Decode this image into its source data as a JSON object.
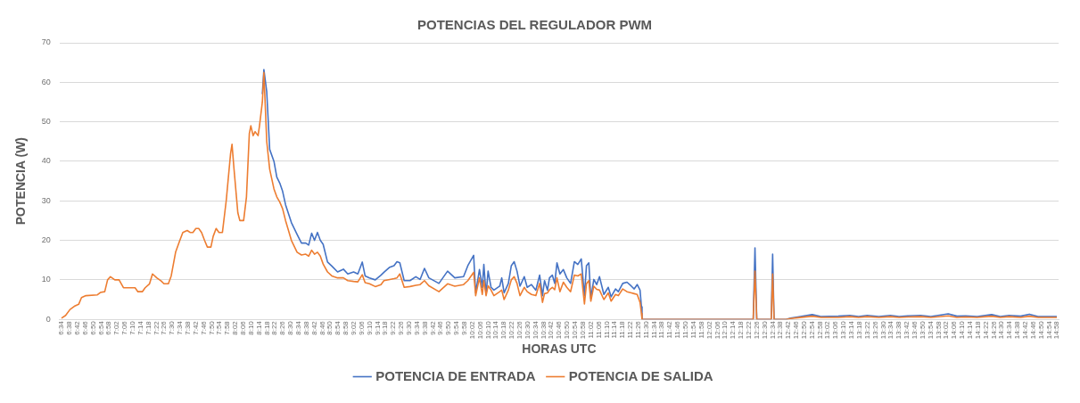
{
  "chart_data": {
    "type": "line",
    "title": "POTENCIAS DEL REGULADOR PWM",
    "xlabel": "HORAS UTC",
    "ylabel": "POTENCIA (W)",
    "x": [
      6.566,
      6.601,
      6.638,
      6.674,
      6.711,
      6.735,
      6.772,
      6.869,
      6.894,
      6.931,
      6.955,
      6.979,
      7.016,
      7.052,
      7.089,
      7.187,
      7.211,
      7.248,
      7.272,
      7.309,
      7.334,
      7.37,
      7.407,
      7.431,
      7.468,
      7.492,
      7.529,
      7.565,
      7.59,
      7.627,
      7.651,
      7.675,
      7.7,
      7.724,
      7.748,
      7.773,
      7.797,
      7.827,
      7.846,
      7.871,
      7.895,
      7.924,
      7.956,
      7.993,
      8.005,
      8.022,
      8.054,
      8.071,
      8.103,
      8.127,
      8.151,
      8.164,
      8.183,
      8.2,
      8.225,
      8.237,
      8.261,
      8.274,
      8.298,
      8.323,
      8.359,
      8.383,
      8.408,
      8.432,
      8.457,
      8.506,
      8.554,
      8.591,
      8.627,
      8.652,
      8.677,
      8.701,
      8.726,
      8.75,
      8.774,
      8.811,
      8.847,
      8.896,
      8.945,
      8.982,
      9.031,
      9.067,
      9.104,
      9.128,
      9.165,
      9.214,
      9.262,
      9.287,
      9.336,
      9.372,
      9.397,
      9.421,
      9.458,
      9.507,
      9.556,
      9.592,
      9.629,
      9.666,
      9.751,
      9.824,
      9.885,
      9.959,
      9.995,
      10.044,
      10.061,
      10.093,
      10.117,
      10.13,
      10.149,
      10.166,
      10.191,
      10.215,
      10.264,
      10.281,
      10.301,
      10.337,
      10.362,
      10.386,
      10.41,
      10.435,
      10.471,
      10.496,
      10.532,
      10.569,
      10.601,
      10.625,
      10.642,
      10.667,
      10.684,
      10.708,
      10.728,
      10.747,
      10.772,
      10.801,
      10.83,
      10.862,
      10.894,
      10.923,
      10.952,
      10.979,
      10.996,
      11.016,
      11.033,
      11.058,
      11.082,
      11.106,
      11.143,
      11.18,
      11.204,
      11.241,
      11.265,
      11.302,
      11.338,
      11.375,
      11.399,
      11.424,
      11.448,
      11.46,
      11.465,
      12.403,
      12.418,
      12.433,
      12.555,
      12.567,
      12.579,
      12.681,
      12.718,
      12.779,
      12.901,
      12.974,
      13.121,
      13.219,
      13.292,
      13.365,
      13.463,
      13.561,
      13.634,
      13.707,
      13.817,
      13.902,
      14.049,
      14.122,
      14.195,
      14.293,
      14.415,
      14.488,
      14.562,
      14.659,
      14.733,
      14.806,
      14.879,
      14.965
    ],
    "series": [
      {
        "name": "POTENCIA DE ENTRADA",
        "color": "#4472c4",
        "values": [
          null,
          null,
          null,
          null,
          null,
          null,
          null,
          null,
          null,
          null,
          null,
          null,
          null,
          null,
          null,
          null,
          null,
          null,
          null,
          null,
          null,
          null,
          null,
          null,
          null,
          null,
          null,
          null,
          null,
          null,
          null,
          null,
          null,
          null,
          null,
          null,
          null,
          null,
          null,
          null,
          null,
          null,
          null,
          null,
          null,
          null,
          null,
          null,
          null,
          null,
          null,
          null,
          null,
          null,
          null,
          null,
          57,
          63.2,
          57.6,
          43,
          40,
          36,
          34.5,
          32.4,
          29,
          24.5,
          21.5,
          19.3,
          19.3,
          18.8,
          21.8,
          20,
          22,
          20,
          19,
          14.5,
          13.5,
          12,
          12.7,
          11.5,
          12,
          11.5,
          14.5,
          11,
          10.5,
          10,
          11.2,
          11.9,
          13.2,
          13.6,
          14.6,
          14.3,
          9.8,
          9.8,
          10.8,
          10.1,
          12.9,
          10.5,
          9.1,
          12.2,
          10.5,
          10.8,
          13.6,
          16.2,
          6.7,
          12.6,
          8.1,
          13.9,
          6.3,
          12.2,
          8.1,
          7.4,
          8.4,
          10.5,
          6.7,
          9.1,
          13.6,
          14.6,
          12.2,
          8.4,
          10.8,
          8.1,
          8.8,
          7.4,
          11.2,
          6,
          9.8,
          7.4,
          10.5,
          11.2,
          9.1,
          14.3,
          11.5,
          12.6,
          10.5,
          9.1,
          14.6,
          13.9,
          15.3,
          6,
          13.6,
          14.3,
          5.3,
          10.1,
          8.8,
          10.8,
          6.3,
          8.1,
          5.7,
          7.7,
          7,
          9.1,
          9.4,
          8.4,
          7.7,
          8.8,
          7.4,
          3.2,
          0,
          0,
          18.1,
          0,
          0,
          16.5,
          0,
          0,
          0.3,
          0.6,
          1.2,
          0.7,
          0.8,
          1,
          0.7,
          1,
          0.7,
          1,
          0.7,
          0.9,
          1,
          0.7,
          1.4,
          0.8,
          0.9,
          0.7,
          1.2,
          0.7,
          1,
          0.8,
          1.3,
          0.7,
          0.7,
          0.7
        ]
      },
      {
        "name": "POTENCIA DE SALIDA",
        "color": "#ed7d31",
        "values": [
          0.3,
          1,
          2.5,
          3.3,
          3.8,
          5.5,
          6,
          6.2,
          6.8,
          7,
          10,
          10.8,
          10,
          10,
          8,
          8,
          7,
          7,
          8,
          9,
          11.5,
          10.5,
          9.7,
          9,
          9,
          11,
          17,
          20,
          22,
          22.5,
          22,
          22,
          23,
          23,
          22,
          20,
          18.3,
          18.3,
          21,
          23,
          22,
          22,
          30,
          42,
          44.3,
          38,
          27,
          25,
          25,
          31,
          47,
          49,
          46.5,
          47.5,
          46.5,
          49,
          55,
          62.5,
          45,
          38,
          33,
          31,
          29.7,
          28,
          25,
          20,
          17,
          16.3,
          16.5,
          16,
          17.5,
          16.5,
          17,
          16,
          14,
          12,
          11,
          10.5,
          10.5,
          9.8,
          9.6,
          9.5,
          11.3,
          9.3,
          9,
          8.3,
          8.8,
          9.8,
          10.1,
          10.3,
          10.5,
          11.5,
          8.1,
          8.3,
          8.6,
          8.8,
          9.8,
          8.5,
          7,
          9,
          8.4,
          8.8,
          9.8,
          11.9,
          6,
          10.5,
          6.3,
          9.8,
          6,
          8.5,
          7.4,
          6,
          7,
          7.4,
          5,
          7.4,
          10,
          10.8,
          9.1,
          6,
          8.1,
          7,
          6.3,
          6,
          9.1,
          4.3,
          6.5,
          6.7,
          7.5,
          8.1,
          7.5,
          10.5,
          7,
          9.4,
          8.1,
          7,
          11.2,
          11,
          11.5,
          3.9,
          9,
          9.8,
          4.6,
          8.4,
          7.6,
          7.4,
          5,
          6.7,
          4.6,
          6.3,
          6,
          7.7,
          7,
          6.7,
          6.5,
          6.3,
          4.3,
          1.5,
          0,
          0,
          12.2,
          0,
          0,
          11.5,
          0,
          0,
          0.2,
          0.4,
          0.8,
          0.5,
          0.5,
          0.7,
          0.5,
          0.7,
          0.5,
          0.7,
          0.5,
          0.6,
          0.7,
          0.5,
          0.9,
          0.5,
          0.6,
          0.5,
          0.8,
          0.5,
          0.7,
          0.5,
          0.8,
          0.5,
          0.5,
          0.5
        ]
      }
    ],
    "xlim": [
      6.55,
      14.98
    ],
    "xticks": [
      {
        "value": 6.567,
        "label": "6:34"
      },
      {
        "value": 6.633,
        "label": "6:38"
      },
      {
        "value": 6.7,
        "label": "6:42"
      },
      {
        "value": 6.767,
        "label": "6:46"
      },
      {
        "value": 6.833,
        "label": "6:50"
      },
      {
        "value": 6.9,
        "label": "6:54"
      },
      {
        "value": 6.967,
        "label": "6:58"
      },
      {
        "value": 7.033,
        "label": "7:02"
      },
      {
        "value": 7.1,
        "label": "7:06"
      },
      {
        "value": 7.167,
        "label": "7:10"
      },
      {
        "value": 7.233,
        "label": "7:14"
      },
      {
        "value": 7.3,
        "label": "7:18"
      },
      {
        "value": 7.367,
        "label": "7:22"
      },
      {
        "value": 7.433,
        "label": "7:26"
      },
      {
        "value": 7.5,
        "label": "7:30"
      },
      {
        "value": 7.567,
        "label": "7:34"
      },
      {
        "value": 7.633,
        "label": "7:38"
      },
      {
        "value": 7.7,
        "label": "7:42"
      },
      {
        "value": 7.767,
        "label": "7:46"
      },
      {
        "value": 7.833,
        "label": "7:50"
      },
      {
        "value": 7.9,
        "label": "7:54"
      },
      {
        "value": 7.967,
        "label": "7:58"
      },
      {
        "value": 8.033,
        "label": "8:02"
      },
      {
        "value": 8.1,
        "label": "8:06"
      },
      {
        "value": 8.167,
        "label": "8:10"
      },
      {
        "value": 8.233,
        "label": "8:14"
      },
      {
        "value": 8.3,
        "label": "8:18"
      },
      {
        "value": 8.367,
        "label": "8:22"
      },
      {
        "value": 8.433,
        "label": "8:26"
      },
      {
        "value": 8.5,
        "label": "8:30"
      },
      {
        "value": 8.567,
        "label": "8:34"
      },
      {
        "value": 8.633,
        "label": "8:38"
      },
      {
        "value": 8.7,
        "label": "8:42"
      },
      {
        "value": 8.767,
        "label": "8:46"
      },
      {
        "value": 8.833,
        "label": "8:50"
      },
      {
        "value": 8.9,
        "label": "8:54"
      },
      {
        "value": 8.967,
        "label": "8:58"
      },
      {
        "value": 9.033,
        "label": "9:02"
      },
      {
        "value": 9.1,
        "label": "9:06"
      },
      {
        "value": 9.167,
        "label": "9:10"
      },
      {
        "value": 9.233,
        "label": "9:14"
      },
      {
        "value": 9.3,
        "label": "9:18"
      },
      {
        "value": 9.367,
        "label": "9:22"
      },
      {
        "value": 9.433,
        "label": "9:26"
      },
      {
        "value": 9.5,
        "label": "9:30"
      },
      {
        "value": 9.567,
        "label": "9:34"
      },
      {
        "value": 9.633,
        "label": "9:38"
      },
      {
        "value": 9.7,
        "label": "9:42"
      },
      {
        "value": 9.767,
        "label": "9:46"
      },
      {
        "value": 9.833,
        "label": "9:50"
      },
      {
        "value": 9.9,
        "label": "9:54"
      },
      {
        "value": 9.967,
        "label": "9:58"
      },
      {
        "value": 10.033,
        "label": "10:02"
      },
      {
        "value": 10.1,
        "label": "10:06"
      },
      {
        "value": 10.167,
        "label": "10:10"
      },
      {
        "value": 10.233,
        "label": "10:14"
      },
      {
        "value": 10.3,
        "label": "10:18"
      },
      {
        "value": 10.367,
        "label": "10:22"
      },
      {
        "value": 10.433,
        "label": "10:26"
      },
      {
        "value": 10.5,
        "label": "10:30"
      },
      {
        "value": 10.567,
        "label": "10:34"
      },
      {
        "value": 10.633,
        "label": "10:38"
      },
      {
        "value": 10.7,
        "label": "10:42"
      },
      {
        "value": 10.767,
        "label": "10:46"
      },
      {
        "value": 10.833,
        "label": "10:50"
      },
      {
        "value": 10.9,
        "label": "10:54"
      },
      {
        "value": 10.967,
        "label": "10:58"
      },
      {
        "value": 11.033,
        "label": "11:02"
      },
      {
        "value": 11.1,
        "label": "11:06"
      },
      {
        "value": 11.167,
        "label": "11:10"
      },
      {
        "value": 11.233,
        "label": "11:14"
      },
      {
        "value": 11.3,
        "label": "11:18"
      },
      {
        "value": 11.367,
        "label": "11:22"
      },
      {
        "value": 11.433,
        "label": "11:26"
      },
      {
        "value": 11.5,
        "label": "11:30"
      },
      {
        "value": 11.567,
        "label": "11:34"
      },
      {
        "value": 11.633,
        "label": "11:38"
      },
      {
        "value": 11.7,
        "label": "11:42"
      },
      {
        "value": 11.767,
        "label": "11:46"
      },
      {
        "value": 11.833,
        "label": "11:50"
      },
      {
        "value": 11.9,
        "label": "11:54"
      },
      {
        "value": 11.967,
        "label": "11:58"
      },
      {
        "value": 12.033,
        "label": "12:02"
      },
      {
        "value": 12.1,
        "label": "12:06"
      },
      {
        "value": 12.167,
        "label": "12:10"
      },
      {
        "value": 12.233,
        "label": "12:14"
      },
      {
        "value": 12.3,
        "label": "12:18"
      },
      {
        "value": 12.367,
        "label": "12:22"
      },
      {
        "value": 12.433,
        "label": "12:26"
      },
      {
        "value": 12.5,
        "label": "12:30"
      },
      {
        "value": 12.567,
        "label": "12:34"
      },
      {
        "value": 12.633,
        "label": "12:38"
      },
      {
        "value": 12.7,
        "label": "12:42"
      },
      {
        "value": 12.767,
        "label": "12:46"
      },
      {
        "value": 12.833,
        "label": "12:50"
      },
      {
        "value": 12.9,
        "label": "12:54"
      },
      {
        "value": 12.967,
        "label": "12:58"
      },
      {
        "value": 13.033,
        "label": "13:02"
      },
      {
        "value": 13.1,
        "label": "13:06"
      },
      {
        "value": 13.167,
        "label": "13:10"
      },
      {
        "value": 13.233,
        "label": "13:14"
      },
      {
        "value": 13.3,
        "label": "13:18"
      },
      {
        "value": 13.367,
        "label": "13:22"
      },
      {
        "value": 13.433,
        "label": "13:26"
      },
      {
        "value": 13.5,
        "label": "13:30"
      },
      {
        "value": 13.567,
        "label": "13:34"
      },
      {
        "value": 13.633,
        "label": "13:38"
      },
      {
        "value": 13.7,
        "label": "13:42"
      },
      {
        "value": 13.767,
        "label": "13:46"
      },
      {
        "value": 13.833,
        "label": "13:50"
      },
      {
        "value": 13.9,
        "label": "13:54"
      },
      {
        "value": 13.967,
        "label": "13:58"
      },
      {
        "value": 14.033,
        "label": "14:02"
      },
      {
        "value": 14.1,
        "label": "14:06"
      },
      {
        "value": 14.167,
        "label": "14:10"
      },
      {
        "value": 14.233,
        "label": "14:14"
      },
      {
        "value": 14.3,
        "label": "14:18"
      },
      {
        "value": 14.367,
        "label": "14:22"
      },
      {
        "value": 14.433,
        "label": "14:26"
      },
      {
        "value": 14.5,
        "label": "14:30"
      },
      {
        "value": 14.567,
        "label": "14:34"
      },
      {
        "value": 14.633,
        "label": "14:38"
      },
      {
        "value": 14.7,
        "label": "14:42"
      },
      {
        "value": 14.767,
        "label": "14:46"
      },
      {
        "value": 14.833,
        "label": "14:50"
      },
      {
        "value": 14.9,
        "label": "14:54"
      },
      {
        "value": 14.967,
        "label": "14:58"
      }
    ],
    "ylim": [
      0,
      70
    ],
    "yticks": [
      0,
      10,
      20,
      30,
      40,
      50,
      60,
      70
    ],
    "grid": "y",
    "legend": "bottom",
    "marker": "none",
    "line_style": "solid"
  }
}
